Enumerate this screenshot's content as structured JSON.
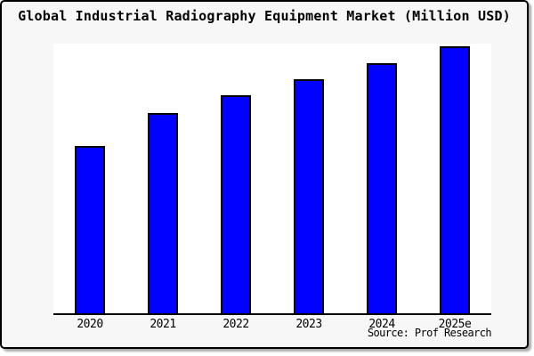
{
  "title": "Global Industrial Radiography Equipment Market (Million USD)",
  "source": "Source: Prof Research",
  "colors": {
    "card_bg": "#f7f7f7",
    "plot_bg": "#ffffff",
    "bar_fill": "#0101ff",
    "bar_border": "#000000",
    "axis": "#000000",
    "text": "#000000"
  },
  "chart_data": {
    "type": "bar",
    "title": "Global Industrial Radiography Equipment Market (Million USD)",
    "categories": [
      "2020",
      "2021",
      "2022",
      "2023",
      "2024",
      "2025e"
    ],
    "values": [
      62.7,
      75.0,
      81.7,
      87.7,
      93.7,
      100.0
    ],
    "xlabel": "",
    "ylabel": "",
    "ylim": [
      0,
      101
    ],
    "grid": false,
    "legend": false,
    "value_units": "relative (no y-axis labels shown; tallest bar = 100)",
    "source": "Source: Prof Research"
  }
}
